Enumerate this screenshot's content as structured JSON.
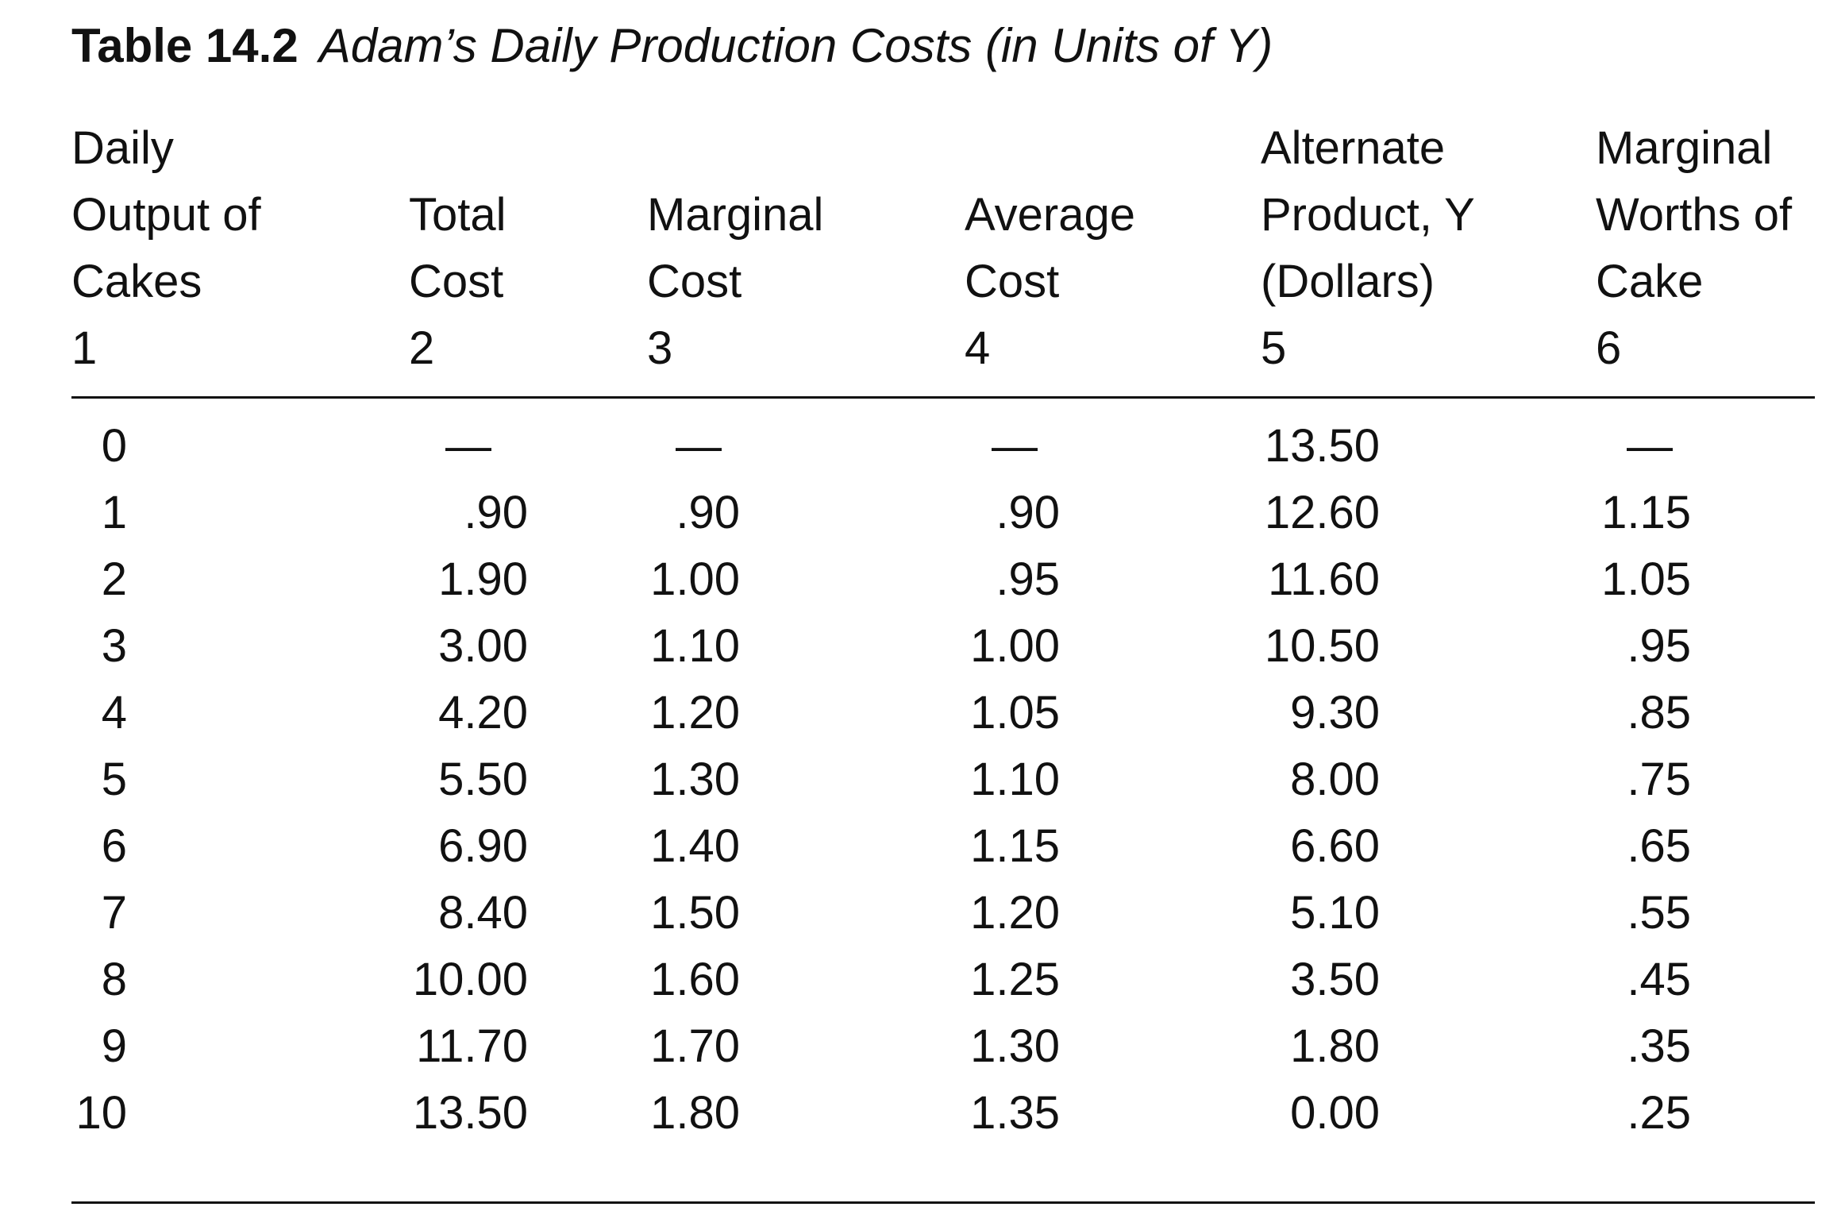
{
  "title": {
    "label": "Table 14.2",
    "caption": "Adam’s Daily Production Costs (in Units of Y)"
  },
  "columns": [
    {
      "header": [
        "Daily",
        "Output of",
        "Cakes",
        "1"
      ]
    },
    {
      "header": [
        "Total",
        "Cost",
        "2"
      ]
    },
    {
      "header": [
        "Marginal",
        "Cost",
        "3"
      ]
    },
    {
      "header": [
        "Average",
        "Cost",
        "4"
      ]
    },
    {
      "header": [
        "Alternate",
        "Product, Y",
        "(Dollars)",
        "5"
      ]
    },
    {
      "header": [
        "Marginal",
        "Worths of",
        "Cake",
        "6"
      ]
    }
  ],
  "rows": [
    [
      "0",
      "—",
      "—",
      "—",
      "13.50",
      "—"
    ],
    [
      "1",
      ".90",
      ".90",
      ".90",
      "12.60",
      "1.15"
    ],
    [
      "2",
      "1.90",
      "1.00",
      ".95",
      "11.60",
      "1.05"
    ],
    [
      "3",
      "3.00",
      "1.10",
      "1.00",
      "10.50",
      ".95"
    ],
    [
      "4",
      "4.20",
      "1.20",
      "1.05",
      "9.30",
      ".85"
    ],
    [
      "5",
      "5.50",
      "1.30",
      "1.10",
      "8.00",
      ".75"
    ],
    [
      "6",
      "6.90",
      "1.40",
      "1.15",
      "6.60",
      ".65"
    ],
    [
      "7",
      "8.40",
      "1.50",
      "1.20",
      "5.10",
      ".55"
    ],
    [
      "8",
      "10.00",
      "1.60",
      "1.25",
      "3.50",
      ".45"
    ],
    [
      "9",
      "11.70",
      "1.70",
      "1.30",
      "1.80",
      ".35"
    ],
    [
      "10",
      "13.50",
      "1.80",
      "1.35",
      "0.00",
      ".25"
    ]
  ]
}
